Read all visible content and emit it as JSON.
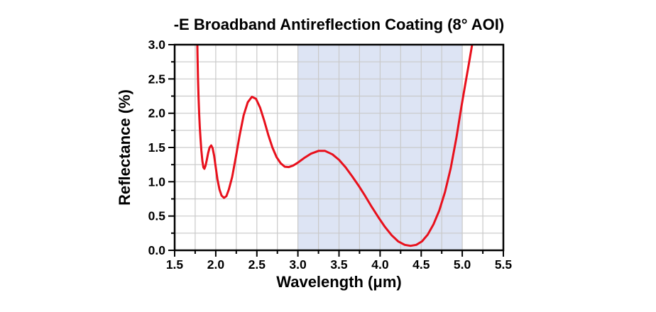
{
  "chart_data": {
    "type": "line",
    "title": "-E Broadband Antireflection Coating (8° AOI)",
    "xlabel": "Wavelength (μm)",
    "ylabel": "Reflectance (%)",
    "xlim": [
      1.5,
      5.5
    ],
    "ylim": [
      0.0,
      3.0
    ],
    "x_ticks": {
      "values": [
        1.5,
        2.0,
        2.5,
        3.0,
        3.5,
        4.0,
        4.5,
        5.0,
        5.5
      ],
      "labels": [
        "1.5",
        "2.0",
        "2.5",
        "3.0",
        "3.5",
        "4.0",
        "4.5",
        "5.0",
        "5.5"
      ]
    },
    "y_ticks": {
      "values": [
        0.0,
        0.5,
        1.0,
        1.5,
        2.0,
        2.5,
        3.0
      ],
      "labels": [
        "0.0",
        "0.5",
        "1.0",
        "1.5",
        "2.0",
        "2.5",
        "3.0"
      ]
    },
    "minor_tick_step": 0.25,
    "grid": true,
    "grid_step": 0.25,
    "legend": "none",
    "band": {
      "x_from": 3.0,
      "x_to": 5.0,
      "color": "#dde4f4"
    },
    "colors": {
      "grid": "#c9c9c9",
      "axis": "#000000",
      "background": "#ffffff",
      "text": "#000000"
    },
    "series": [
      {
        "name": "Reflectance",
        "color": "#e8101c",
        "points": [
          [
            1.772,
            3.3
          ],
          [
            1.778,
            2.85
          ],
          [
            1.784,
            2.5
          ],
          [
            1.79,
            2.25
          ],
          [
            1.798,
            2.0
          ],
          [
            1.806,
            1.8
          ],
          [
            1.815,
            1.62
          ],
          [
            1.825,
            1.46
          ],
          [
            1.838,
            1.3
          ],
          [
            1.85,
            1.21
          ],
          [
            1.862,
            1.19
          ],
          [
            1.875,
            1.23
          ],
          [
            1.89,
            1.31
          ],
          [
            1.908,
            1.42
          ],
          [
            1.925,
            1.5
          ],
          [
            1.945,
            1.53
          ],
          [
            1.962,
            1.49
          ],
          [
            1.98,
            1.38
          ],
          [
            2.0,
            1.21
          ],
          [
            2.02,
            1.04
          ],
          [
            2.045,
            0.89
          ],
          [
            2.07,
            0.8
          ],
          [
            2.1,
            0.765
          ],
          [
            2.13,
            0.79
          ],
          [
            2.16,
            0.89
          ],
          [
            2.2,
            1.07
          ],
          [
            2.245,
            1.36
          ],
          [
            2.29,
            1.67
          ],
          [
            2.34,
            1.97
          ],
          [
            2.39,
            2.16
          ],
          [
            2.44,
            2.24
          ],
          [
            2.49,
            2.21
          ],
          [
            2.54,
            2.08
          ],
          [
            2.59,
            1.89
          ],
          [
            2.64,
            1.68
          ],
          [
            2.69,
            1.5
          ],
          [
            2.74,
            1.36
          ],
          [
            2.79,
            1.27
          ],
          [
            2.84,
            1.22
          ],
          [
            2.89,
            1.215
          ],
          [
            2.94,
            1.235
          ],
          [
            3.0,
            1.28
          ],
          [
            3.08,
            1.35
          ],
          [
            3.16,
            1.41
          ],
          [
            3.25,
            1.45
          ],
          [
            3.33,
            1.45
          ],
          [
            3.42,
            1.4
          ],
          [
            3.5,
            1.32
          ],
          [
            3.58,
            1.21
          ],
          [
            3.66,
            1.08
          ],
          [
            3.74,
            0.94
          ],
          [
            3.82,
            0.79
          ],
          [
            3.9,
            0.63
          ],
          [
            3.98,
            0.48
          ],
          [
            4.06,
            0.34
          ],
          [
            4.14,
            0.22
          ],
          [
            4.22,
            0.13
          ],
          [
            4.3,
            0.08
          ],
          [
            4.37,
            0.065
          ],
          [
            4.44,
            0.08
          ],
          [
            4.51,
            0.13
          ],
          [
            4.58,
            0.23
          ],
          [
            4.65,
            0.38
          ],
          [
            4.72,
            0.58
          ],
          [
            4.79,
            0.85
          ],
          [
            4.86,
            1.2
          ],
          [
            4.93,
            1.65
          ],
          [
            4.99,
            2.1
          ],
          [
            5.04,
            2.45
          ],
          [
            5.08,
            2.72
          ],
          [
            5.12,
            3.0
          ],
          [
            5.15,
            3.3
          ]
        ]
      }
    ]
  }
}
